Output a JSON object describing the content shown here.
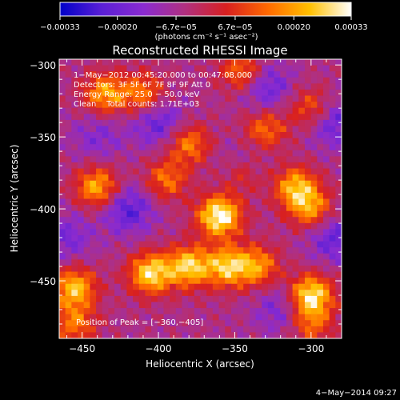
{
  "chart_data": {
    "type": "heatmap",
    "title": "Reconstructed RHESSI Image",
    "xlabel": "Heliocentric X (arcsec)",
    "ylabel": "Heliocentric Y (arcsec)",
    "xlim": [
      -465,
      -280
    ],
    "ylim": [
      -490,
      -296
    ],
    "x_ticks": [
      -450,
      -400,
      -350,
      -300
    ],
    "y_ticks": [
      -300,
      -350,
      -400,
      -450
    ],
    "x_tick_labels": [
      "−450",
      "−400",
      "−350",
      "−300"
    ],
    "y_tick_labels": [
      "−300",
      "−350",
      "−400",
      "−450"
    ],
    "colorbar": {
      "min": -0.00033,
      "max": 0.00033,
      "ticks": [
        -0.00033,
        -0.0002,
        -6.7e-05,
        6.7e-05,
        0.0002,
        0.00033
      ],
      "tick_labels": [
        "−0.00033",
        "−0.00020",
        "−6.7e−05",
        "6.7e−05",
        "0.00020",
        "0.00033"
      ],
      "unit_label": "(photons cm⁻² s⁻¹ asec⁻²)",
      "colors": [
        "#0000c8",
        "#5a1fd6",
        "#8a2bd0",
        "#b03080",
        "#d82020",
        "#ff6a00",
        "#ffc000",
        "#ffffff"
      ]
    },
    "annotations": [
      "1−May−2012 00:45:20.000 to 00:47:08.000",
      "Detectors: 3F 5F 6F 7F 8F 9F Att 0",
      "Energy Range: 25.0 − 50.0 keV",
      "Clean    Total counts: 1.71E+03"
    ],
    "peak_label": "Position of Peak = [−360,−405]",
    "peak": [
      -360,
      -405
    ],
    "blobs": [
      {
        "x": -360,
        "y": -405,
        "v": 1.0
      },
      {
        "x": -300,
        "y": -460,
        "v": 0.9
      },
      {
        "x": -405,
        "y": -445,
        "v": 0.85
      },
      {
        "x": -380,
        "y": -440,
        "v": 0.8
      },
      {
        "x": -355,
        "y": -440,
        "v": 0.75
      },
      {
        "x": -335,
        "y": -440,
        "v": 0.6
      },
      {
        "x": -440,
        "y": -385,
        "v": 0.7
      },
      {
        "x": -435,
        "y": -320,
        "v": 0.65
      },
      {
        "x": -410,
        "y": -320,
        "v": 0.55
      },
      {
        "x": -345,
        "y": -305,
        "v": 0.55
      },
      {
        "x": -380,
        "y": -355,
        "v": 0.55
      },
      {
        "x": -310,
        "y": -385,
        "v": 0.7
      },
      {
        "x": -300,
        "y": -400,
        "v": 0.6
      },
      {
        "x": -330,
        "y": -345,
        "v": 0.5
      },
      {
        "x": -455,
        "y": -455,
        "v": 0.75
      },
      {
        "x": -455,
        "y": -480,
        "v": 0.5
      },
      {
        "x": -300,
        "y": -330,
        "v": 0.45
      },
      {
        "x": -300,
        "y": -480,
        "v": 0.45
      },
      {
        "x": -395,
        "y": -380,
        "v": 0.5
      },
      {
        "x": -345,
        "y": -375,
        "v": 0.45
      }
    ],
    "troughs": [
      {
        "x": -420,
        "y": -400,
        "v": 0.9
      },
      {
        "x": -400,
        "y": -340,
        "v": 0.8
      },
      {
        "x": -330,
        "y": -315,
        "v": 0.8
      },
      {
        "x": -345,
        "y": -370,
        "v": 0.6
      },
      {
        "x": -285,
        "y": -340,
        "v": 0.8
      },
      {
        "x": -285,
        "y": -420,
        "v": 0.8
      },
      {
        "x": -460,
        "y": -420,
        "v": 0.6
      },
      {
        "x": -320,
        "y": -470,
        "v": 0.6
      },
      {
        "x": -440,
        "y": -350,
        "v": 0.5
      }
    ]
  },
  "footer": {
    "date_stamp": "4−May−2014 09:27"
  }
}
